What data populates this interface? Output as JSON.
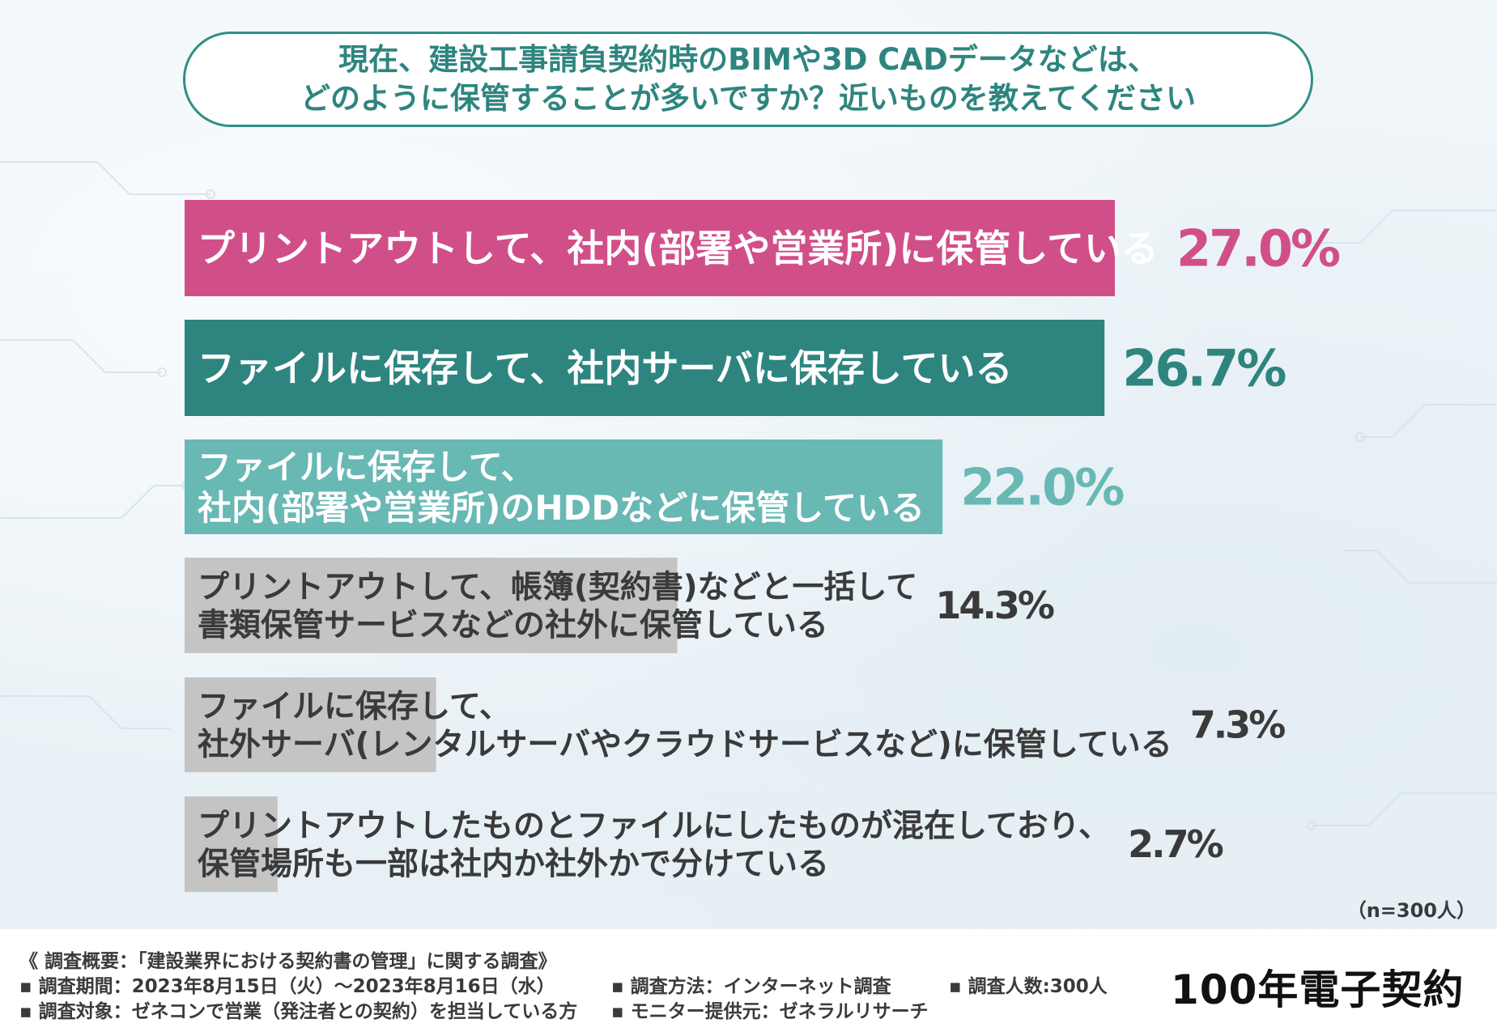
{
  "question": {
    "line1": "現在、建設工事請負契約時のBIMや3D CADデータなどは、",
    "line2": "どのように保管することが多いですか？近いものを教えてください"
  },
  "chart_data": {
    "type": "bar",
    "orientation": "horizontal",
    "unit": "%",
    "categories": [
      [
        "プリントアウトして、社内(部署や営業所)に保管している"
      ],
      [
        "ファイルに保存して、社内サーバに保存している"
      ],
      [
        "ファイルに保存して、",
        "社内(部署や営業所)のHDDなどに保管している"
      ],
      [
        "プリントアウトして、帳簿(契約書)などと一括して",
        "書類保管サービスなどの社外に保管している"
      ],
      [
        "ファイルに保存して、",
        "社外サーバ(レンタルサーバやクラウドサービスなど)に保管している"
      ],
      [
        "プリントアウトしたものとファイルにしたものが混在しており、",
        "保管場所も一部は社内か社外かで分けている"
      ]
    ],
    "values": [
      27.0,
      26.7,
      22.0,
      14.3,
      7.3,
      2.7
    ],
    "value_labels": [
      "27.0%",
      "26.7%",
      "22.0%",
      "14.3%",
      "7.3%",
      "2.7%"
    ],
    "colors": [
      "#d14f88",
      "#2e857f",
      "#68b8b4",
      "#c4c4c4",
      "#c4c4c4",
      "#c4c4c4"
    ],
    "label_colors": [
      "#ffffff",
      "#ffffff",
      "#ffffff",
      "#3a3a3a",
      "#3a3a3a",
      "#3a3a3a"
    ],
    "value_colors": [
      "#d14f88",
      "#2e857f",
      "#68b8b4",
      "#3a3a3a",
      "#3a3a3a",
      "#3a3a3a"
    ],
    "xlim": [
      0,
      27.0
    ],
    "grid": false,
    "legend": "none"
  },
  "sample_note": "（n=300人）",
  "footer": {
    "overview": "《 調査概要：「建設業界における契約書の管理」に関する調査》",
    "period": "▪ 調査期間：2023年8月15日（火）～2023年8月16日（水）",
    "target": "▪ 調査対象：ゼネコンで営業（発注者との契約）を担当している方",
    "method": "▪ 調査方法：インターネット調査",
    "monitor": "▪ モニター提供元：ゼネラルリサーチ",
    "count": "▪ 調査人数:300人",
    "logo": "100年電子契約"
  }
}
